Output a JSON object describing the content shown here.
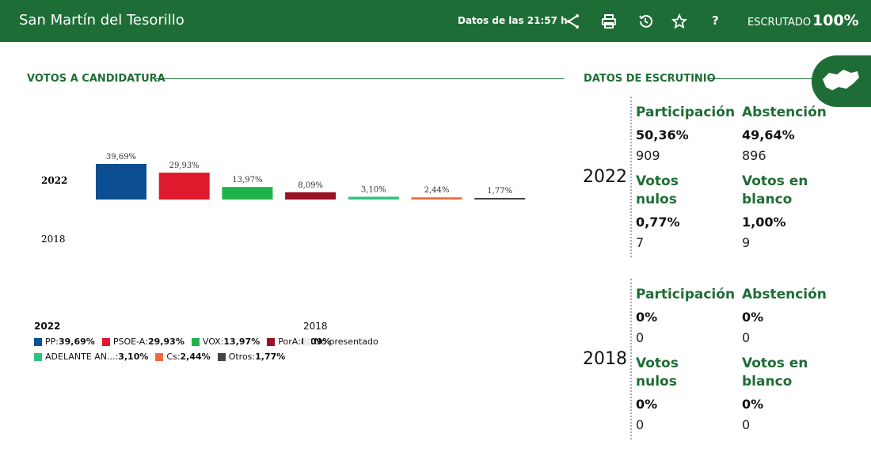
{
  "header": {
    "title": "San Martín del Tesorillo",
    "time": "Datos de las 21:57 h",
    "help": "?",
    "scrutiny_label": "ESCRUTADO",
    "scrutiny_value": "100%"
  },
  "chart_data": {
    "type": "bar",
    "title": "VOTOS A CANDIDATURA",
    "categories": [
      "PP",
      "PSOE-A",
      "VOX",
      "PorA",
      "ADELANTE AN...",
      "Cs",
      "Otros"
    ],
    "colors": [
      "#0b4f92",
      "#e01a2d",
      "#1fb34a",
      "#9b1126",
      "#2fc47f",
      "#ef6b3c",
      "#444444"
    ],
    "series": [
      {
        "name": "2022",
        "values": [
          39.69,
          29.93,
          13.97,
          8.09,
          3.1,
          2.44,
          1.77
        ],
        "value_labels": [
          "39,69%",
          "29,93%",
          "13,97%",
          "8,09%",
          "3,10%",
          "2,44%",
          "1,77%"
        ]
      }
    ],
    "absent": {
      "name": "2018",
      "note": "No presentado"
    }
  },
  "scrutiny": {
    "title": "DATOS DE ESCRUTINIO",
    "years": [
      {
        "year": "2022",
        "items": [
          {
            "label": "Participación",
            "percent": "50,36%",
            "count": "909"
          },
          {
            "label": "Abstención",
            "percent": "49,64%",
            "count": "896"
          },
          {
            "label": "Votos nulos",
            "percent": "0,77%",
            "count": "7"
          },
          {
            "label": "Votos en blanco",
            "percent": "1,00%",
            "count": "9"
          }
        ]
      },
      {
        "year": "2018",
        "items": [
          {
            "label": "Participación",
            "percent": "0%",
            "count": "0"
          },
          {
            "label": "Abstención",
            "percent": "0%",
            "count": "0"
          },
          {
            "label": "Votos nulos",
            "percent": "0%",
            "count": "0"
          },
          {
            "label": "Votos en blanco",
            "percent": "0%",
            "count": "0"
          }
        ]
      }
    ]
  }
}
